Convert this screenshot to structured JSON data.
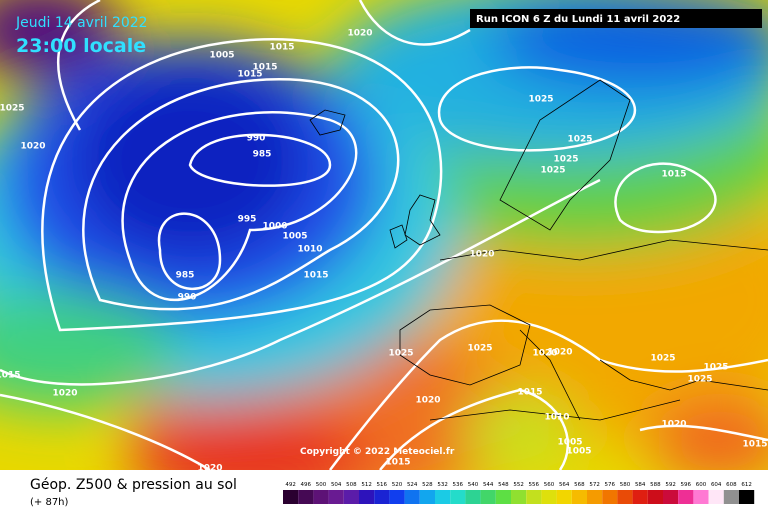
{
  "header": {
    "date": "Jeudi 14 avril 2022",
    "time": "23:00 locale",
    "run": "Run ICON 6 Z du Lundi 11 avril 2022"
  },
  "map": {
    "isobar_labels": [
      1020,
      1005,
      1015,
      1015,
      1015,
      1025,
      1020,
      990,
      985,
      995,
      1000,
      1005,
      1010,
      1015,
      985,
      990,
      1025,
      1025,
      1025,
      1025,
      1015,
      1020,
      1025,
      1025,
      1020,
      1020,
      1025,
      1025,
      1025,
      1015,
      1020,
      1020,
      1015,
      1010,
      1005,
      1005,
      1020,
      1015,
      1015,
      1020
    ],
    "copyright": "Copyright © 2022 Meteociel.fr"
  },
  "footer": {
    "title": "Géop. Z500 & pression au sol",
    "lead": "(+ 87h)",
    "scale": [
      492,
      496,
      500,
      504,
      508,
      512,
      516,
      520,
      524,
      528,
      532,
      536,
      540,
      544,
      548,
      552,
      556,
      560,
      564,
      568,
      572,
      576,
      580,
      584,
      588,
      592,
      596,
      600,
      604,
      608,
      612
    ]
  }
}
